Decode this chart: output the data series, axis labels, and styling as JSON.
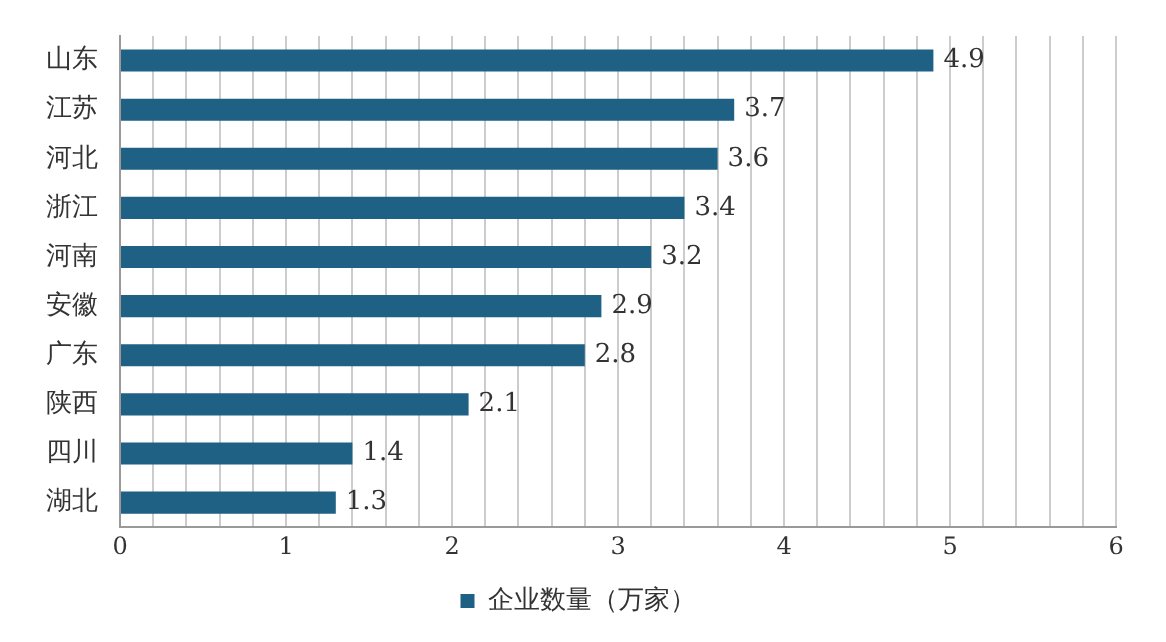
{
  "chart_data": {
    "type": "bar",
    "orientation": "horizontal",
    "categories": [
      "山东",
      "江苏",
      "河北",
      "浙江",
      "河南",
      "安徽",
      "广东",
      "陕西",
      "四川",
      "湖北"
    ],
    "series": [
      {
        "name": "企业数量（万家）",
        "color": "#1f6185",
        "values": [
          4.9,
          3.7,
          3.6,
          3.4,
          3.2,
          2.9,
          2.8,
          2.1,
          1.4,
          1.3
        ]
      }
    ],
    "xlim": [
      0,
      6
    ],
    "xticks": [
      0,
      {
        "value": 0.2,
        "label": null
      },
      {
        "value": 0.4,
        "label": null
      },
      {
        "value": 0.6,
        "label": null
      },
      {
        "value": 0.8,
        "label": null
      },
      1,
      {
        "value": 1.2,
        "label": null
      },
      {
        "value": 1.4,
        "label": null
      },
      {
        "value": 1.6,
        "label": null
      },
      {
        "value": 1.8,
        "label": null
      },
      2,
      {
        "value": 2.2,
        "label": null
      },
      {
        "value": 2.4,
        "label": null
      },
      {
        "value": 2.6,
        "label": null
      },
      {
        "value": 2.8,
        "label": null
      },
      3,
      {
        "value": 3.2,
        "label": null
      },
      {
        "value": 3.4,
        "label": null
      },
      {
        "value": 3.6,
        "label": null
      },
      {
        "value": 3.8,
        "label": null
      },
      4,
      {
        "value": 4.2,
        "label": null
      },
      {
        "value": 4.4,
        "label": null
      },
      {
        "value": 4.6,
        "label": null
      },
      {
        "value": 4.8,
        "label": null
      },
      5,
      {
        "value": 5.2,
        "label": null
      },
      {
        "value": 5.4,
        "label": null
      },
      {
        "value": 5.6,
        "label": null
      },
      {
        "value": 5.8,
        "label": null
      },
      6
    ],
    "grid": "x",
    "legend": "bottom",
    "data_labels": true
  }
}
